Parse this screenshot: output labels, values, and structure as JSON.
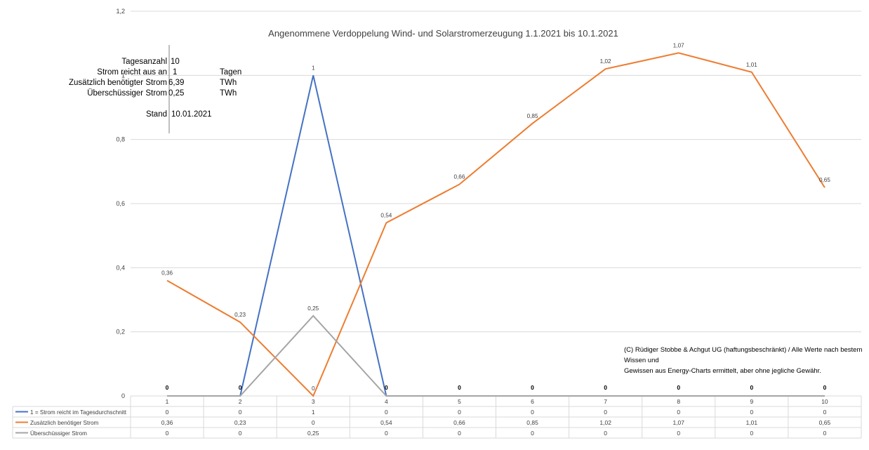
{
  "colors": {
    "series_blue": "#4472C4",
    "series_orange": "#ED7D31",
    "series_gray": "#A5A5A5",
    "grid": "#D9D9D9",
    "text": "#404040"
  },
  "info_table": {
    "rows": [
      {
        "label": "Tagesanzahl",
        "value": "10",
        "unit": ""
      },
      {
        "label": "Strom reicht aus an",
        "value": "1",
        "unit": "Tagen"
      },
      {
        "label": "Zusätzlich benötigter Strom",
        "value": "6,39",
        "unit": "TWh"
      },
      {
        "label": "Überschüssiger Strom",
        "value": "0,25",
        "unit": "TWh"
      }
    ],
    "stand_label": "Stand",
    "stand_value": "10.01.2021"
  },
  "copyright": {
    "line1": "(C) Rüdiger Stobbe & Achgut UG (haftungsbeschränkt) / Alle Werte nach bestem Wissen und",
    "line2": "Gewissen aus Energy-Charts ermittelt, aber ohne jegliche Gewähr."
  },
  "chart_data": {
    "type": "line",
    "title": "Angenommene Verdoppelung Wind- und Solarstromerzeugung 1.1.2021 bis 10.1.2021",
    "categories": [
      "1",
      "2",
      "3",
      "4",
      "5",
      "6",
      "7",
      "8",
      "9",
      "10"
    ],
    "ylim": [
      0,
      1.2
    ],
    "yticks": [
      "0",
      "0,2",
      "0,4",
      "0,6",
      "0,8",
      "1",
      "1,2"
    ],
    "ytick_values": [
      0,
      0.2,
      0.4,
      0.6,
      0.8,
      1.0,
      1.2
    ],
    "grid": true,
    "legend": "bottom (data table)",
    "series": [
      {
        "name": "1 = Strom reicht im Tagesdurchschnitt",
        "color": "#4472C4",
        "values": [
          0,
          0,
          1,
          0,
          0,
          0,
          0,
          0,
          0,
          0
        ],
        "labels": [
          "0",
          "0",
          "1",
          "0",
          "0",
          "0",
          "0",
          "0",
          "0",
          "0"
        ]
      },
      {
        "name": "Zusätzlich benötiger Strom",
        "color": "#ED7D31",
        "values": [
          0.36,
          0.23,
          0,
          0.54,
          0.66,
          0.85,
          1.02,
          1.07,
          1.01,
          0.65
        ],
        "labels": [
          "0,36",
          "0,23",
          "0",
          "0,54",
          "0,66",
          "0,85",
          "1,02",
          "1,07",
          "1,01",
          "0,65"
        ]
      },
      {
        "name": "Überschüssiger Strom",
        "color": "#A5A5A5",
        "values": [
          0,
          0,
          0.25,
          0,
          0,
          0,
          0,
          0,
          0,
          0
        ],
        "labels": [
          "0",
          "0",
          "0,25",
          "0",
          "0",
          "0",
          "0",
          "0",
          "0",
          "0"
        ]
      }
    ],
    "point_labels": [
      {
        "series": 1,
        "index": 0,
        "text": "0,36"
      },
      {
        "series": 1,
        "index": 1,
        "text": "0,23"
      },
      {
        "series": 2,
        "index": 2,
        "text": "0,25"
      },
      {
        "series": 0,
        "index": 2,
        "text": "1"
      },
      {
        "series": 1,
        "index": 2,
        "text": "0"
      },
      {
        "series": 1,
        "index": 3,
        "text": "0,54"
      },
      {
        "series": 1,
        "index": 4,
        "text": "0,66"
      },
      {
        "series": 1,
        "index": 5,
        "text": "0,85"
      },
      {
        "series": 1,
        "index": 6,
        "text": "1,02"
      },
      {
        "series": 1,
        "index": 7,
        "text": "1,07"
      },
      {
        "series": 1,
        "index": 8,
        "text": "1,01"
      },
      {
        "series": 1,
        "index": 9,
        "text": "0,65"
      }
    ],
    "baseline_labels": [
      "0",
      "0",
      "",
      "0",
      "0",
      "0",
      "0",
      "0",
      "0",
      "0"
    ]
  }
}
